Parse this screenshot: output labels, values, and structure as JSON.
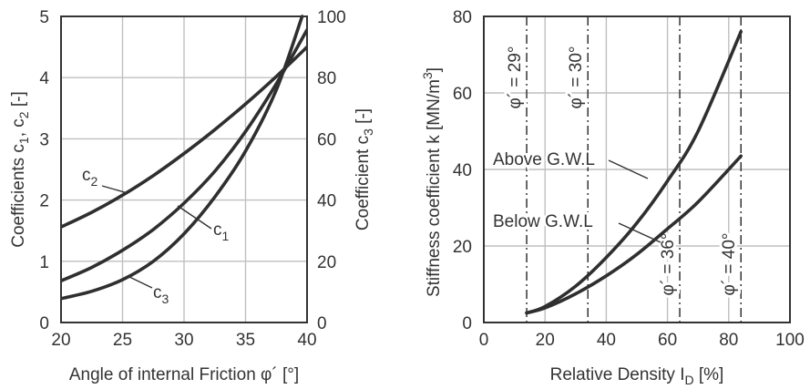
{
  "chart_data": [
    {
      "type": "line",
      "xlabel": "Angle of internal Friction φ´ [°]",
      "ylabel_left": "Coefficients c1, c2 [-]",
      "ylabel_right": "Coefficient c3 [-]",
      "xlim": [
        20,
        40
      ],
      "ylim_left": [
        0,
        5
      ],
      "ylim_right": [
        0,
        100
      ],
      "x_ticks": [
        "20",
        "25",
        "30",
        "35",
        "40"
      ],
      "y_ticks_left": [
        "0",
        "1",
        "2",
        "3",
        "4",
        "5"
      ],
      "y_ticks_right": [
        "0",
        "20",
        "40",
        "60",
        "80",
        "100"
      ],
      "grid": true,
      "series": [
        {
          "name": "c1",
          "axis": "left",
          "x": [
            20,
            22.5,
            25,
            27.5,
            30,
            32.5,
            35,
            37.5,
            40
          ],
          "y": [
            0.68,
            0.9,
            1.18,
            1.52,
            1.95,
            2.47,
            3.12,
            3.9,
            4.78
          ]
        },
        {
          "name": "c2",
          "axis": "left",
          "x": [
            20,
            22.5,
            25,
            27.5,
            30,
            32.5,
            35,
            37.5,
            40
          ],
          "y": [
            1.56,
            1.8,
            2.08,
            2.4,
            2.76,
            3.15,
            3.57,
            4.02,
            4.5
          ]
        },
        {
          "name": "c3",
          "axis": "right",
          "x": [
            20,
            22.5,
            25,
            27.5,
            30,
            32.5,
            35,
            37.5,
            39.6
          ],
          "y": [
            7.8,
            10.2,
            14,
            20,
            29,
            41,
            56,
            76,
            100
          ]
        }
      ],
      "curve_labels": [
        {
          "text": "c",
          "sub": "2",
          "x": 22,
          "y": 2.6
        },
        {
          "text": "c",
          "sub": "1",
          "x": 29.8,
          "y": 1.55
        },
        {
          "text": "c",
          "sub": "3",
          "x": 27.3,
          "y": 0.38
        }
      ]
    },
    {
      "type": "line",
      "xlabel": "Relative Density I",
      "xlabel_sub": "D",
      "xlabel_tail": " [%]",
      "ylabel": "Stiffness coefficient k [MN/m",
      "ylabel_sup": "3",
      "ylabel_tail": "]",
      "xlim": [
        0,
        100
      ],
      "ylim": [
        0,
        80
      ],
      "x_ticks": [
        "0",
        "20",
        "40",
        "60",
        "80",
        "100"
      ],
      "y_ticks": [
        "0",
        "20",
        "40",
        "60",
        "80"
      ],
      "grid": true,
      "series": [
        {
          "name": "Above G.W.L",
          "x": [
            14,
            20,
            30,
            40,
            50,
            60,
            70,
            84
          ],
          "y": [
            2.5,
            4.2,
            9.5,
            17,
            26,
            37,
            50,
            76
          ]
        },
        {
          "name": "Below G.W.L",
          "x": [
            14,
            20,
            30,
            40,
            50,
            60,
            70,
            84
          ],
          "y": [
            2.5,
            3.8,
            7.5,
            12.2,
            17.8,
            24.5,
            31.5,
            43.5
          ]
        }
      ],
      "vertical_markers": [
        {
          "x": 14,
          "label": "φ´ = 29°",
          "label_pos": "top"
        },
        {
          "x": 34,
          "label": "φ´ = 30°",
          "label_pos": "top"
        },
        {
          "x": 64,
          "label": "φ´ = 36°",
          "label_pos": "bottom"
        },
        {
          "x": 84,
          "label": "φ´ = 40°",
          "label_pos": "bottom"
        }
      ]
    }
  ]
}
